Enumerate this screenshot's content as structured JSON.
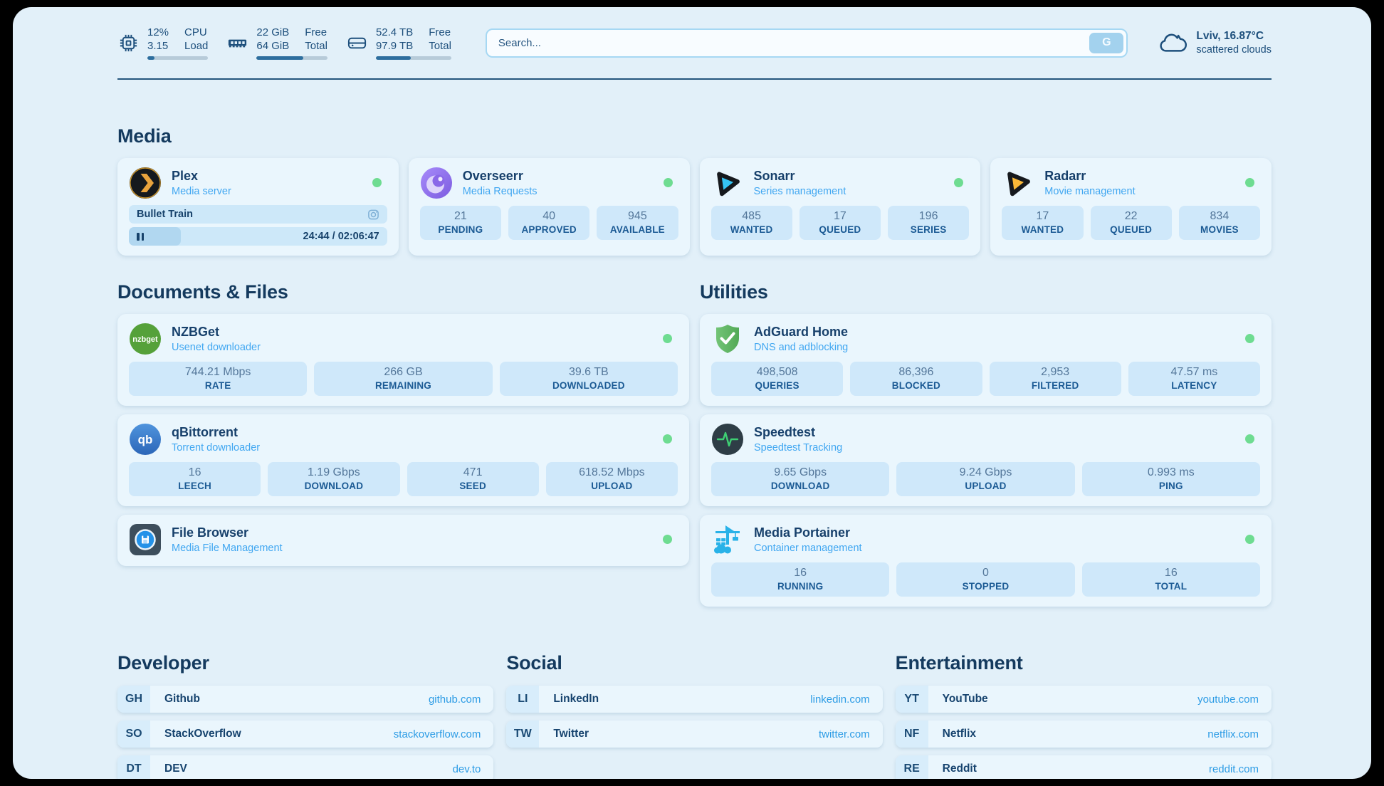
{
  "topbar": {
    "stats": [
      {
        "icon": "cpu-icon",
        "values": [
          "12%",
          "3.15"
        ],
        "labels": [
          "CPU",
          "Load"
        ],
        "progress": 12
      },
      {
        "icon": "memory-icon",
        "values": [
          "22 GiB",
          "64 GiB"
        ],
        "labels": [
          "Free",
          "Total"
        ],
        "progress": 66
      },
      {
        "icon": "disk-icon",
        "values": [
          "52.4 TB",
          "97.9 TB"
        ],
        "labels": [
          "Free",
          "Total"
        ],
        "progress": 46
      }
    ],
    "search": {
      "placeholder": "Search...",
      "button_label": "G"
    },
    "weather": {
      "location": "Lviv, 16.87°C",
      "condition": "scattered clouds"
    }
  },
  "sections": {
    "media": "Media",
    "documents": "Documents & Files",
    "utilities": "Utilities",
    "developer": "Developer",
    "social": "Social",
    "entertainment": "Entertainment"
  },
  "apps": {
    "plex": {
      "name": "Plex",
      "description": "Media server",
      "status": "online",
      "now_playing": {
        "title": "Bullet Train",
        "time": "24:44 / 02:06:47",
        "progress": 20
      }
    },
    "overseerr": {
      "name": "Overseerr",
      "description": "Media Requests",
      "status": "online",
      "stats": [
        {
          "value": "21",
          "label": "PENDING"
        },
        {
          "value": "40",
          "label": "APPROVED"
        },
        {
          "value": "945",
          "label": "AVAILABLE"
        }
      ]
    },
    "sonarr": {
      "name": "Sonarr",
      "description": "Series management",
      "status": "online",
      "stats": [
        {
          "value": "485",
          "label": "WANTED"
        },
        {
          "value": "17",
          "label": "QUEUED"
        },
        {
          "value": "196",
          "label": "SERIES"
        }
      ]
    },
    "radarr": {
      "name": "Radarr",
      "description": "Movie management",
      "status": "online",
      "stats": [
        {
          "value": "17",
          "label": "WANTED"
        },
        {
          "value": "22",
          "label": "QUEUED"
        },
        {
          "value": "834",
          "label": "MOVIES"
        }
      ]
    },
    "nzbget": {
      "name": "NZBGet",
      "description": "Usenet downloader",
      "status": "online",
      "stats": [
        {
          "value": "744.21 Mbps",
          "label": "RATE"
        },
        {
          "value": "266 GB",
          "label": "REMAINING"
        },
        {
          "value": "39.6 TB",
          "label": "DOWNLOADED"
        }
      ]
    },
    "qbittorrent": {
      "name": "qBittorrent",
      "description": "Torrent downloader",
      "status": "online",
      "stats": [
        {
          "value": "16",
          "label": "LEECH"
        },
        {
          "value": "1.19 Gbps",
          "label": "DOWNLOAD"
        },
        {
          "value": "471",
          "label": "SEED"
        },
        {
          "value": "618.52 Mbps",
          "label": "UPLOAD"
        }
      ]
    },
    "filebrowser": {
      "name": "File Browser",
      "description": "Media File Management",
      "status": "online"
    },
    "adguard": {
      "name": "AdGuard Home",
      "description": "DNS and adblocking",
      "status": "online",
      "stats": [
        {
          "value": "498,508",
          "label": "QUERIES"
        },
        {
          "value": "86,396",
          "label": "BLOCKED"
        },
        {
          "value": "2,953",
          "label": "FILTERED"
        },
        {
          "value": "47.57 ms",
          "label": "LATENCY"
        }
      ]
    },
    "speedtest": {
      "name": "Speedtest",
      "description": "Speedtest Tracking",
      "status": "online",
      "stats": [
        {
          "value": "9.65 Gbps",
          "label": "DOWNLOAD"
        },
        {
          "value": "9.24 Gbps",
          "label": "UPLOAD"
        },
        {
          "value": "0.993 ms",
          "label": "PING"
        }
      ]
    },
    "portainer": {
      "name": "Media Portainer",
      "description": "Container management",
      "status": "online",
      "stats": [
        {
          "value": "16",
          "label": "RUNNING"
        },
        {
          "value": "0",
          "label": "STOPPED"
        },
        {
          "value": "16",
          "label": "TOTAL"
        }
      ]
    }
  },
  "bookmarks": {
    "developer": [
      {
        "abbr": "GH",
        "name": "Github",
        "url": "github.com"
      },
      {
        "abbr": "SO",
        "name": "StackOverflow",
        "url": "stackoverflow.com"
      },
      {
        "abbr": "DT",
        "name": "DEV",
        "url": "dev.to"
      }
    ],
    "social": [
      {
        "abbr": "LI",
        "name": "LinkedIn",
        "url": "linkedin.com"
      },
      {
        "abbr": "TW",
        "name": "Twitter",
        "url": "twitter.com"
      }
    ],
    "entertainment": [
      {
        "abbr": "YT",
        "name": "YouTube",
        "url": "youtube.com"
      },
      {
        "abbr": "NF",
        "name": "Netflix",
        "url": "netflix.com"
      },
      {
        "abbr": "RE",
        "name": "Reddit",
        "url": "reddit.com"
      }
    ]
  },
  "colors": {
    "accent": "#41a7f1",
    "navy": "#1d4f7c",
    "status_green": "#6edc91"
  }
}
